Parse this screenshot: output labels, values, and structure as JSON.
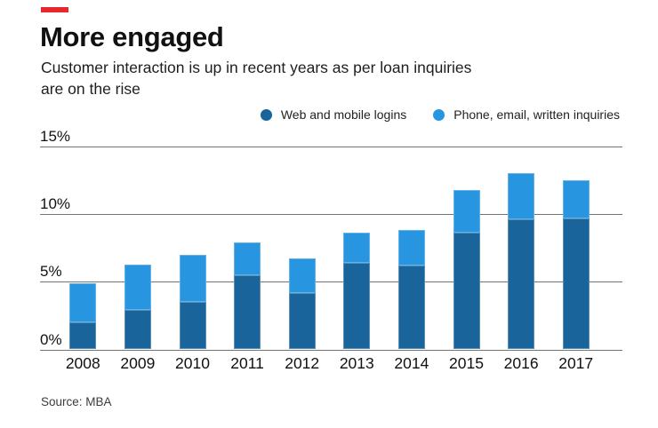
{
  "header": {
    "title": "More engaged",
    "subtitle_line1": "Customer interaction is up in recent years as per loan inquiries",
    "subtitle_line2": "are on the rise"
  },
  "legend": [
    {
      "label": "Web and mobile logins",
      "color": "#19649B"
    },
    {
      "label": "Phone, email, written inquiries",
      "color": "#2795E0"
    }
  ],
  "source": "Source: MBA",
  "colors": {
    "accent_red": "#E8272D",
    "bar_dark": "#19649B",
    "bar_light": "#2795E0",
    "gridline": "#757575",
    "baseline": "#757575"
  },
  "chart_data": {
    "type": "bar",
    "stacked": true,
    "title": "More engaged",
    "subtitle": "Customer interaction is up in recent years as per loan inquiries are on the rise",
    "categories": [
      "2008",
      "2009",
      "2010",
      "2011",
      "2012",
      "2013",
      "2014",
      "2015",
      "2016",
      "2017"
    ],
    "series": [
      {
        "name": "Web and mobile logins",
        "color": "#19649B",
        "values": [
          2.0,
          2.9,
          3.5,
          5.5,
          4.2,
          6.4,
          6.2,
          8.6,
          9.6,
          9.7
        ]
      },
      {
        "name": "Phone, email, written inquiries",
        "color": "#2795E0",
        "values": [
          2.9,
          3.4,
          3.5,
          2.4,
          2.5,
          2.2,
          2.6,
          3.2,
          3.4,
          2.8
        ]
      }
    ],
    "totals": [
      4.9,
      6.3,
      7.0,
      7.9,
      6.7,
      8.6,
      8.8,
      11.8,
      13.0,
      12.5
    ],
    "ylabel": "",
    "xlabel": "",
    "yticks": [
      0,
      5,
      10,
      15
    ],
    "ytick_labels": [
      "0%",
      "5%",
      "10%",
      "15%"
    ],
    "ylim": [
      0,
      15
    ],
    "grid": true,
    "legend_position": "top-right"
  }
}
